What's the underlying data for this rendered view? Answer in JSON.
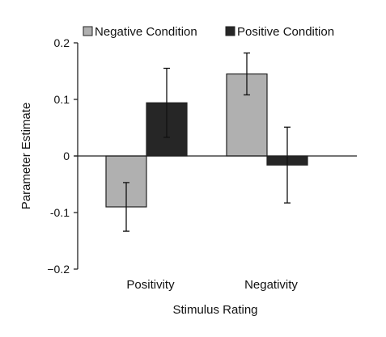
{
  "chart_data": {
    "type": "bar",
    "categories": [
      "Positivity",
      "Negativity"
    ],
    "series": [
      {
        "name": "Negative Condition",
        "values": [
          -0.09,
          0.145
        ],
        "errors": [
          0.043,
          0.037
        ],
        "color": "#b0b0b0"
      },
      {
        "name": "Positive Condition",
        "values": [
          0.094,
          -0.016
        ],
        "errors": [
          0.061,
          0.067
        ],
        "color": "#262626"
      }
    ],
    "xlabel": "Stimulus Rating",
    "ylabel": "Parameter Estimate",
    "ylim": [
      -0.2,
      0.2
    ],
    "yticks": [
      0.2,
      0.1,
      0,
      -0.1,
      -0.2
    ],
    "ytick_labels": [
      "0.2",
      "0.1",
      "0",
      "-0.1",
      "−0.2"
    ],
    "legend_position": "top",
    "grid": false
  }
}
